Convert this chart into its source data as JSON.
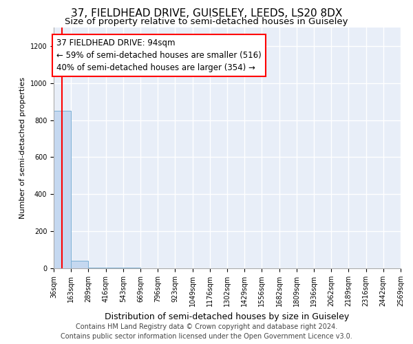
{
  "title": "37, FIELDHEAD DRIVE, GUISELEY, LEEDS, LS20 8DX",
  "subtitle": "Size of property relative to semi-detached houses in Guiseley",
  "xlabel": "Distribution of semi-detached houses by size in Guiseley",
  "ylabel": "Number of semi-detached properties",
  "footer_line1": "Contains HM Land Registry data © Crown copyright and database right 2024.",
  "footer_line2": "Contains public sector information licensed under the Open Government Licence v3.0.",
  "annotation_line1": "37 FIELDHEAD DRIVE: 94sqm",
  "annotation_line2": "← 59% of semi-detached houses are smaller (516)",
  "annotation_line3": "40% of semi-detached houses are larger (354) →",
  "bar_edges": [
    36,
    163,
    289,
    416,
    543,
    669,
    796,
    923,
    1049,
    1176,
    1302,
    1429,
    1556,
    1682,
    1809,
    1936,
    2062,
    2189,
    2316,
    2442,
    2569
  ],
  "bar_heights": [
    850,
    40,
    5,
    3,
    2,
    1,
    1,
    1,
    0,
    0,
    0,
    0,
    0,
    0,
    0,
    0,
    0,
    0,
    0,
    0
  ],
  "bar_color": "#c5d8f0",
  "bar_edgecolor": "#7aafd4",
  "red_line_x": 94,
  "ylim": [
    0,
    1300
  ],
  "yticks": [
    0,
    200,
    400,
    600,
    800,
    1000,
    1200
  ],
  "background_color": "#e8eef8",
  "grid_color": "#ffffff",
  "title_fontsize": 11,
  "subtitle_fontsize": 9.5,
  "ylabel_fontsize": 8,
  "xlabel_fontsize": 9,
  "tick_fontsize": 7,
  "annotation_fontsize": 8.5,
  "footer_fontsize": 7
}
